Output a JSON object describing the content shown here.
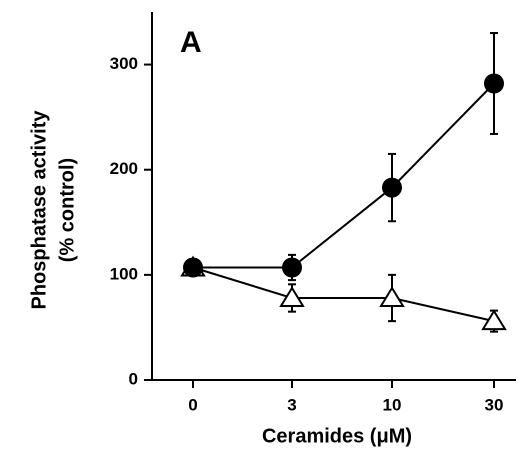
{
  "chart_data": {
    "type": "line",
    "panel_label": "A",
    "xlabel": "Ceramides (μM)",
    "ylabel": [
      "Phosphatase activity",
      "(% control)"
    ],
    "categories": [
      "0",
      "3",
      "10",
      "30"
    ],
    "series": [
      {
        "color": "#000000",
        "marker": "circle-filled",
        "values": [
          107,
          107,
          183,
          282
        ],
        "errors": [
          8,
          12,
          32,
          48
        ]
      },
      {
        "color": "#000000",
        "marker": "triangle-open",
        "values": [
          107,
          78,
          78,
          56
        ],
        "errors": [
          8,
          13,
          22,
          10
        ]
      }
    ],
    "ylim": [
      0,
      350
    ],
    "yticks": [
      0,
      100,
      200,
      300
    ]
  }
}
